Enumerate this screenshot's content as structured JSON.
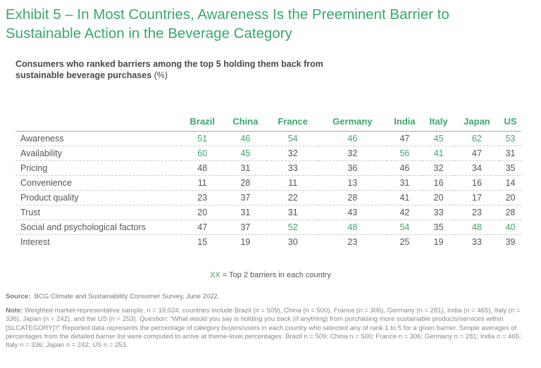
{
  "title": "Exhibit 5 – In Most Countries, Awareness Is the Preeminent Barrier to Sustainable Action in the Beverage Category",
  "subtitle": "Consumers who ranked barriers among the top 5 holding them back from sustainable beverage purchases",
  "subtitle_unit": "(%)",
  "legend": {
    "marker": "XX",
    "text": " = Top 2 barriers in each country"
  },
  "source": {
    "label": "Source:",
    "text": "BCG Climate and Sustainability Consumer Survey, June 2022."
  },
  "note": {
    "label": "Note:",
    "text": "Weighted market-representative sample, n = 19,024; countries include Brazil (n = 509), China (n = 500), France (n = 306), Germany (n = 281), India (n = 465), Italy (n = 336), Japan (n = 242), and the US (n = 253). Question: “What would you say is holding you back (if anything) from purchasing more sustainable products/services within [SLCATEGORY]?” Reported data represents the percentage of category buyers/users in each country who selected any of rank 1 to 5 for a given barrier. Simple averages of percentages from the detailed barrier list were computed to arrive at theme-level percentages. Brazil n = 509; China n = 500; France n = 306; Germany n = 281; India n = 465; Italy n = 336; Japan n = 242; US n = 253."
  },
  "colors": {
    "accent": "#3aa76d",
    "text": "#555555"
  },
  "chart_data": {
    "type": "table",
    "columns": [
      "Brazil",
      "China",
      "France",
      "Germany",
      "India",
      "Italy",
      "Japan",
      "US"
    ],
    "rows": [
      {
        "label": "Awareness",
        "values": [
          51,
          46,
          54,
          46,
          47,
          45,
          62,
          53
        ],
        "top2": [
          1,
          1,
          1,
          1,
          0,
          1,
          1,
          1
        ]
      },
      {
        "label": "Availability",
        "values": [
          60,
          45,
          32,
          32,
          56,
          41,
          47,
          31
        ],
        "top2": [
          1,
          1,
          0,
          0,
          1,
          1,
          0,
          0
        ]
      },
      {
        "label": "Pricing",
        "values": [
          48,
          31,
          33,
          36,
          46,
          32,
          34,
          35
        ],
        "top2": [
          0,
          0,
          0,
          0,
          0,
          0,
          0,
          0
        ]
      },
      {
        "label": "Convenience",
        "values": [
          11,
          28,
          11,
          13,
          31,
          16,
          16,
          14
        ],
        "top2": [
          0,
          0,
          0,
          0,
          0,
          0,
          0,
          0
        ]
      },
      {
        "label": "Product quality",
        "values": [
          23,
          37,
          22,
          28,
          41,
          20,
          17,
          20
        ],
        "top2": [
          0,
          0,
          0,
          0,
          0,
          0,
          0,
          0
        ]
      },
      {
        "label": "Trust",
        "values": [
          20,
          31,
          31,
          43,
          42,
          33,
          23,
          28
        ],
        "top2": [
          0,
          0,
          0,
          0,
          0,
          0,
          0,
          0
        ]
      },
      {
        "label": "Social and psychological factors",
        "values": [
          47,
          37,
          52,
          48,
          54,
          35,
          48,
          40
        ],
        "top2": [
          0,
          0,
          1,
          1,
          1,
          0,
          1,
          1
        ]
      },
      {
        "label": "Interest",
        "values": [
          15,
          19,
          30,
          23,
          25,
          19,
          33,
          39
        ],
        "top2": [
          0,
          0,
          0,
          0,
          0,
          0,
          0,
          0
        ]
      }
    ]
  }
}
